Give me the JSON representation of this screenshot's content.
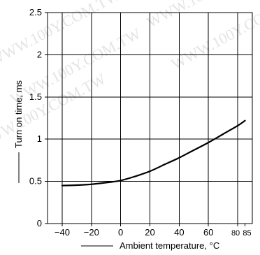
{
  "chart_data": {
    "type": "line",
    "title": "",
    "xlabel": "Ambient temperature, °C",
    "ylabel": "Turn on time, ms",
    "xlim": [
      -50,
      90
    ],
    "ylim": [
      0,
      2.5
    ],
    "x_ticks": [
      -40,
      -20,
      0,
      20,
      40,
      60,
      80,
      85
    ],
    "x_tick_labels": [
      "−40",
      "−20",
      "0",
      "20",
      "40",
      "60",
      "80",
      "85"
    ],
    "y_ticks": [
      0,
      0.5,
      1,
      1.5,
      2,
      2.5
    ],
    "y_tick_labels": [
      "0",
      "0.5",
      "1",
      "1.5",
      "2",
      "2.5"
    ],
    "grid": true,
    "series": [
      {
        "x": [
          -40,
          -30,
          -20,
          -10,
          0,
          10,
          20,
          30,
          40,
          50,
          60,
          70,
          80,
          85
        ],
        "y": [
          0.45,
          0.455,
          0.465,
          0.485,
          0.51,
          0.56,
          0.62,
          0.7,
          0.78,
          0.87,
          0.96,
          1.06,
          1.16,
          1.22
        ]
      }
    ]
  },
  "colors": {
    "line": "#000000",
    "grid": "#000000",
    "background": "#ffffff",
    "watermark": "#e4e4e4"
  },
  "watermark": {
    "text": "WWW.100Y.COM.TW"
  }
}
